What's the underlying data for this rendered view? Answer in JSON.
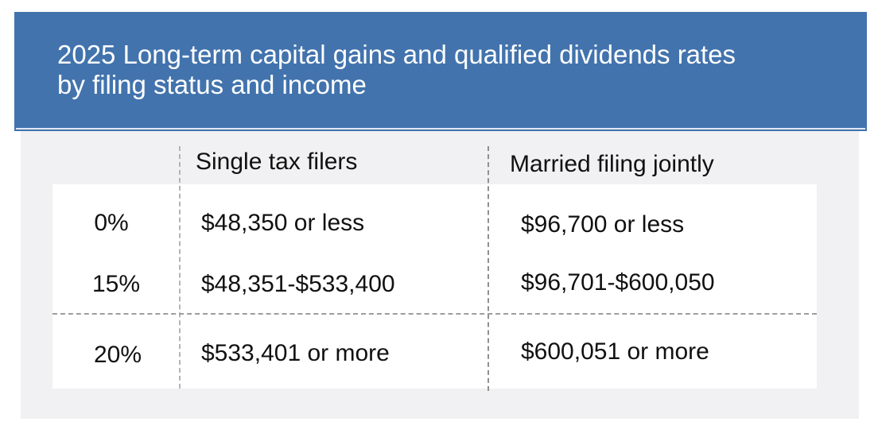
{
  "header": {
    "title": "2025 Long-term capital gains and qualified dividends rates\nby filing status and income",
    "background_color": "#4273ad"
  },
  "table": {
    "columns": [
      "",
      "Single tax filers",
      "Married filing jointly"
    ],
    "rows": [
      {
        "rate": "0%",
        "single": "$48,350 or less",
        "married": "$96,700 or less"
      },
      {
        "rate": "15%",
        "single": "$48,351-$533,400",
        "married": "$96,701-$600,050"
      },
      {
        "rate": "20%",
        "single": "$533,401 or more",
        "married": "$600,051 or more"
      }
    ]
  }
}
